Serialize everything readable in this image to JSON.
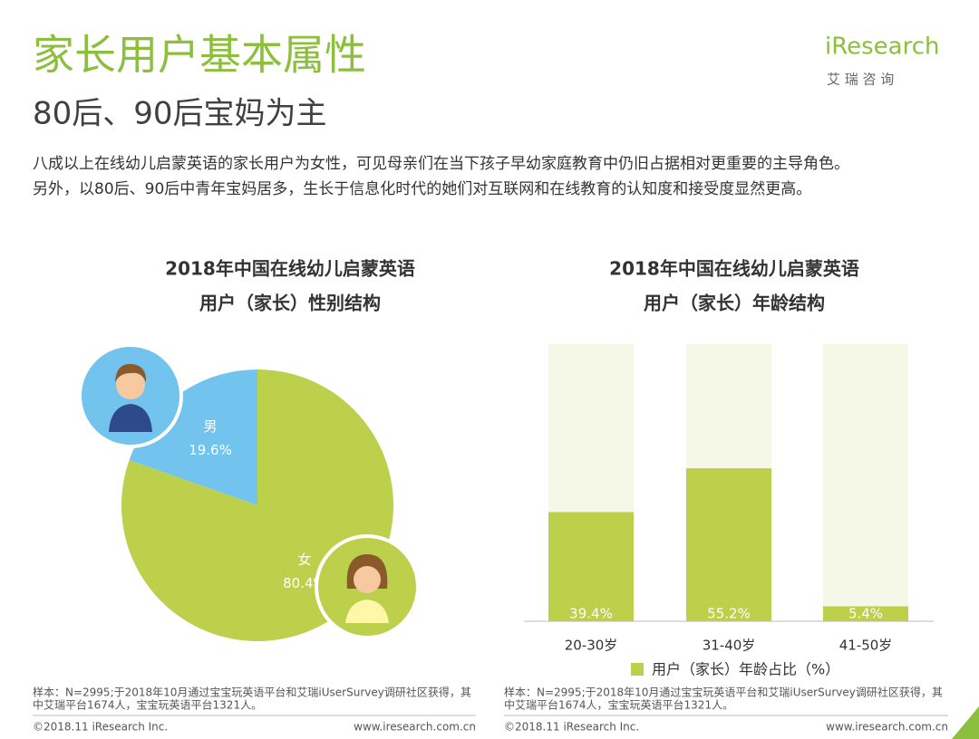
{
  "header": {
    "title": "家长用户基本属性",
    "subtitle": "80后、90后宝妈为主",
    "logo": "iResearch",
    "logo_sub": "艾 瑞 咨 询"
  },
  "intro": [
    "八成以上在线幼儿启蒙英语的家长用户为女性，可见母亲们在当下孩子早幼家庭教育中仍旧占据相对更重要的主导角色。",
    "另外，以80后、90后中青年宝妈居多，生长于信息化时代的她们对互联网和在线教育的认知度和接受度显然更高。"
  ],
  "chart_data": [
    {
      "type": "pie",
      "title": [
        "2018年中国在线幼儿启蒙英语",
        "用户（家长）性别结构"
      ],
      "categories": [
        "男",
        "女"
      ],
      "values": [
        19.6,
        80.4
      ],
      "value_labels": [
        "19.6%",
        "80.4%"
      ],
      "colors": [
        "#72c4ee",
        "#bcd04c"
      ]
    },
    {
      "type": "bar",
      "title": [
        "2018年中国在线幼儿启蒙英语",
        "用户（家长）年龄结构"
      ],
      "categories": [
        "20-30岁",
        "31-40岁",
        "41-50岁"
      ],
      "series": [
        {
          "name": "用户（家长）年龄占比（%）",
          "color": "#bcd04c",
          "values": [
            39.4,
            55.2,
            5.4
          ],
          "value_labels": [
            "39.4%",
            "55.2%",
            "5.4%"
          ]
        }
      ],
      "ylim": [
        0,
        100
      ]
    }
  ],
  "footer": {
    "left": {
      "note": [
        "样本：N=2995;于2018年10月通过宝宝玩英语平台和艾瑞iUserSurvey调研社区获得，其",
        "中艾瑞平台1674人，宝宝玩英语平台1321人。"
      ],
      "copyright": "©2018.11 iResearch Inc.",
      "url": "www.iresearch.com.cn"
    },
    "right": {
      "note": [
        "样本：N=2995;于2018年10月通过宝宝玩英语平台和艾瑞iUserSurvey调研社区获得，其",
        "中艾瑞平台1674人，宝宝玩英语平台1321人。"
      ],
      "copyright": "©2018.11 iResearch Inc.",
      "url": "www.iresearch.com.cn"
    }
  }
}
